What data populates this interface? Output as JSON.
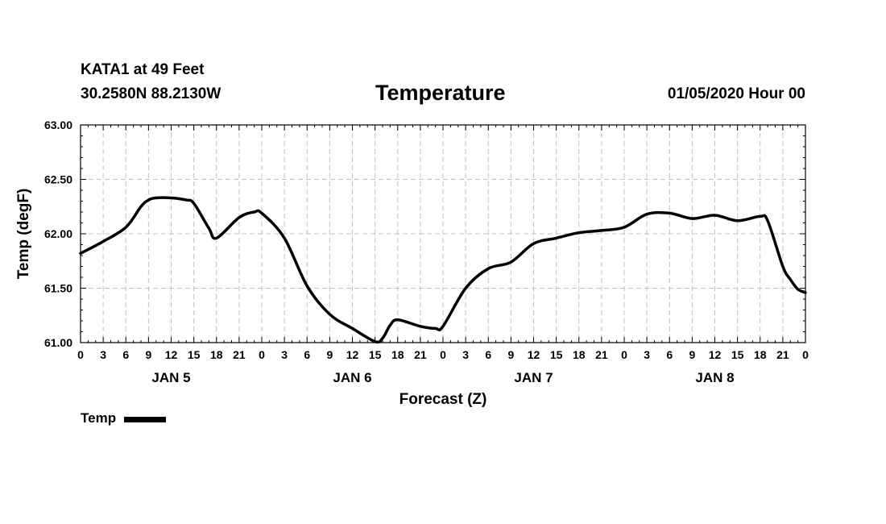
{
  "header": {
    "station": "KATA1 at 49 Feet",
    "coordinates": "30.2580N 88.2130W",
    "title": "Temperature",
    "datetime": "01/05/2020 Hour 00"
  },
  "legend": {
    "label": "Temp"
  },
  "colors": {
    "line": "#000000",
    "grid": "#c0c0c0",
    "background": "#ffffff"
  },
  "chart_data": {
    "type": "line",
    "title": "Temperature",
    "xlabel": "Forecast (Z)",
    "ylabel": "Temp (degF)",
    "xlim": [
      0,
      96
    ],
    "ylim": [
      61.0,
      63.0
    ],
    "grid": true,
    "x_tick_step_hours": 3,
    "x_tick_labels": [
      "0",
      "3",
      "6",
      "9",
      "12",
      "15",
      "18",
      "21",
      "0",
      "3",
      "6",
      "9",
      "12",
      "15",
      "18",
      "21",
      "0",
      "3",
      "6",
      "9",
      "12",
      "15",
      "18",
      "21",
      "0",
      "3",
      "6",
      "9",
      "12",
      "15",
      "18",
      "21",
      "0"
    ],
    "y_ticks": [
      61.0,
      61.5,
      62.0,
      62.5,
      63.0
    ],
    "y_tick_labels": [
      "61.00",
      "61.50",
      "62.00",
      "62.50",
      "63.00"
    ],
    "day_labels": [
      {
        "label": "JAN 5",
        "x": 12
      },
      {
        "label": "JAN 6",
        "x": 36
      },
      {
        "label": "JAN 7",
        "x": 60
      },
      {
        "label": "JAN 8",
        "x": 84
      }
    ],
    "series": [
      {
        "name": "Temp",
        "x": [
          0,
          3,
          6,
          8,
          9,
          10,
          12,
          14,
          15,
          17,
          18,
          21,
          23,
          24,
          27,
          30,
          33,
          36,
          39,
          40,
          41,
          42,
          45,
          47,
          48,
          51,
          54,
          57,
          60,
          63,
          66,
          69,
          72,
          75,
          78,
          81,
          84,
          87,
          90,
          91,
          93,
          94,
          95,
          96
        ],
        "values": [
          61.82,
          61.93,
          62.06,
          62.25,
          62.31,
          62.33,
          62.33,
          62.31,
          62.28,
          62.05,
          61.96,
          62.15,
          62.2,
          62.19,
          61.96,
          61.52,
          61.26,
          61.13,
          61.01,
          61.04,
          61.16,
          61.21,
          61.15,
          61.13,
          61.15,
          61.5,
          61.68,
          61.74,
          61.91,
          61.96,
          62.01,
          62.03,
          62.06,
          62.18,
          62.19,
          62.14,
          62.17,
          62.12,
          62.16,
          62.12,
          61.7,
          61.58,
          61.49,
          61.46
        ]
      }
    ]
  }
}
